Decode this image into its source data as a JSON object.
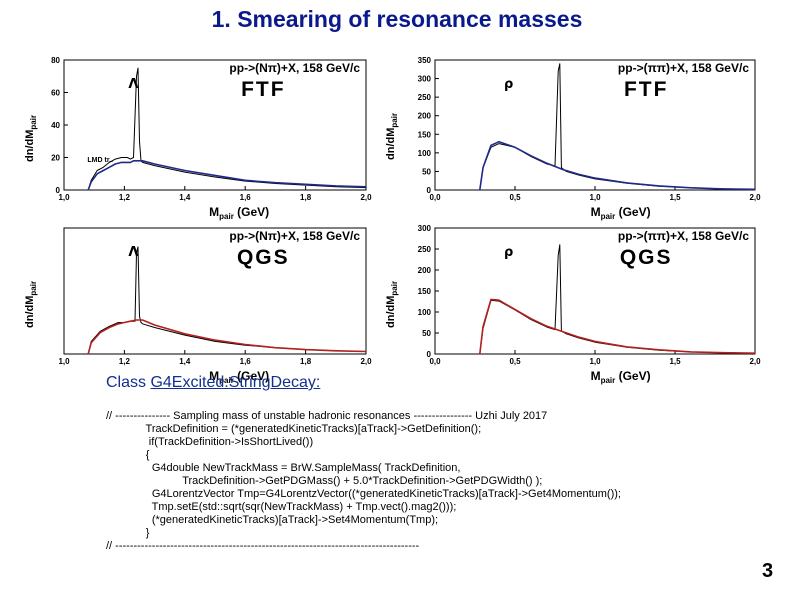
{
  "slide": {
    "title": "1. Smearing of resonance masses",
    "class_prefix": "Class ",
    "class_name": "G4Excited.StringDecay:",
    "code_lines": [
      "// --------------- Sampling mass of unstable hadronic resonances ---------------- Uzhi July 2017",
      "             TrackDefinition = (*generatedKineticTracks)[aTrack]->GetDefinition();",
      "",
      "              if(TrackDefinition->IsShortLived())",
      "             {",
      "               G4double NewTrackMass = BrW.SampleMass( TrackDefinition,",
      "                         TrackDefinition->GetPDGMass() + 5.0*TrackDefinition->GetPDGWidth() );",
      "               G4LorentzVector Tmp=G4LorentzVector((*generatedKineticTracks)[aTrack]->Get4Momentum());",
      "               Tmp.setE(std::sqrt(sqr(NewTrackMass) + Tmp.vect().mag2()));",
      "",
      "               (*generatedKineticTracks)[aTrack]->Set4Momentum(Tmp);",
      "             }",
      "// -----------------------------------------------------------------------------------"
    ],
    "page_number": "3"
  },
  "chart_data": [
    {
      "type": "line",
      "title": "pp->(Nπ)+X, 158 GeV/c",
      "model": "FTF",
      "resonance_label": "Λ",
      "extra_label": "LMD tr..",
      "ylabel": "dn/dM",
      "ylabel_sub": "pair",
      "xlabel": "M",
      "xlabel_sub": "pair",
      "xlabel_unit": "(GeV)",
      "xlim": [
        1.0,
        2.0
      ],
      "ylim": [
        0,
        80
      ],
      "xticks": [
        "1,0",
        "1,2",
        "1,4",
        "1,6",
        "1,8",
        "2,0"
      ],
      "yticks": [
        "0",
        "20",
        "40",
        "60",
        "80"
      ],
      "colors": {
        "black": "#000000",
        "blue": "#1f2a8a"
      },
      "series": [
        {
          "color": "black",
          "x": [
            1.08,
            1.09,
            1.11,
            1.13,
            1.15,
            1.17,
            1.19,
            1.21,
            1.22,
            1.23,
            1.24,
            1.245,
            1.25,
            1.255,
            1.26,
            1.3,
            1.4,
            1.5,
            1.6,
            1.7,
            1.8,
            1.9,
            2.0
          ],
          "y": [
            0,
            6,
            12,
            14,
            17,
            19,
            20,
            20,
            19,
            20,
            70,
            75,
            30,
            18,
            17,
            15,
            11,
            8,
            5.5,
            4,
            3,
            2,
            1.5
          ]
        },
        {
          "color": "blue",
          "x": [
            1.08,
            1.09,
            1.11,
            1.13,
            1.15,
            1.17,
            1.19,
            1.21,
            1.22,
            1.23,
            1.24,
            1.26,
            1.3,
            1.4,
            1.5,
            1.6,
            1.7,
            1.8,
            1.9,
            2.0
          ],
          "y": [
            0,
            5,
            10,
            12,
            14,
            16,
            17,
            17,
            17,
            18,
            18,
            18,
            16,
            12,
            9,
            6,
            4.5,
            3.5,
            2.5,
            2
          ]
        }
      ]
    },
    {
      "type": "line",
      "title": "pp->(ππ)+X, 158 GeV/c",
      "model": "FTF",
      "resonance_label": "ρ",
      "ylabel": "dn/dM",
      "ylabel_sub": "pair",
      "xlabel": "M",
      "xlabel_sub": "pair",
      "xlabel_unit": "(GeV)",
      "xlim": [
        0.0,
        2.0
      ],
      "ylim": [
        0,
        350
      ],
      "xticks": [
        "0,0",
        "0,5",
        "1,0",
        "1,5",
        "2,0"
      ],
      "yticks": [
        "0",
        "50",
        "100",
        "150",
        "200",
        "250",
        "300",
        "350"
      ],
      "colors": {
        "black": "#000000",
        "blue": "#1f2a8a"
      },
      "series": [
        {
          "color": "black",
          "x": [
            0.28,
            0.3,
            0.35,
            0.4,
            0.5,
            0.6,
            0.7,
            0.75,
            0.77,
            0.78,
            0.79,
            0.82,
            0.9,
            1.0,
            1.2,
            1.4,
            1.6,
            1.8,
            2.0
          ],
          "y": [
            0,
            60,
            115,
            125,
            115,
            90,
            70,
            65,
            320,
            340,
            60,
            50,
            40,
            30,
            18,
            10,
            6,
            3,
            2
          ]
        },
        {
          "color": "blue",
          "x": [
            0.28,
            0.3,
            0.35,
            0.4,
            0.5,
            0.6,
            0.7,
            0.8,
            0.9,
            1.0,
            1.2,
            1.4,
            1.6,
            1.8,
            2.0
          ],
          "y": [
            0,
            60,
            120,
            130,
            115,
            92,
            72,
            55,
            42,
            32,
            19,
            11,
            6,
            3,
            2
          ]
        }
      ]
    },
    {
      "type": "line",
      "title": "pp->(Nπ)+X, 158 GeV/c",
      "model": "QGS",
      "resonance_label": "Λ",
      "ylabel": "dn/dM",
      "ylabel_sub": "pair",
      "xlabel": "M",
      "xlabel_sub": "pair",
      "xlabel_unit": "(GeV)",
      "xlim": [
        1.0,
        2.0
      ],
      "ylim": [
        0,
        100
      ],
      "xticks": [
        "1,0",
        "1,2",
        "1,4",
        "1,6",
        "1,8",
        "2,0"
      ],
      "yticks": [],
      "colors": {
        "black": "#000000",
        "red": "#b22020"
      },
      "series": [
        {
          "color": "black",
          "x": [
            1.08,
            1.09,
            1.12,
            1.15,
            1.18,
            1.2,
            1.22,
            1.235,
            1.24,
            1.245,
            1.25,
            1.255,
            1.26,
            1.3,
            1.4,
            1.5,
            1.6,
            1.7,
            1.8,
            1.9,
            2.0
          ],
          "y": [
            0,
            10,
            18,
            22,
            25,
            25,
            26,
            26,
            80,
            85,
            30,
            25,
            24,
            21,
            15,
            10,
            7,
            5,
            3.5,
            2.5,
            2
          ]
        },
        {
          "color": "red",
          "x": [
            1.08,
            1.09,
            1.12,
            1.15,
            1.18,
            1.2,
            1.22,
            1.24,
            1.26,
            1.3,
            1.4,
            1.5,
            1.6,
            1.7,
            1.8,
            1.9,
            2.0
          ],
          "y": [
            0,
            9,
            17,
            21,
            24,
            25,
            26,
            27,
            27,
            23,
            16,
            11,
            7.5,
            5,
            3.5,
            2.5,
            2
          ]
        }
      ]
    },
    {
      "type": "line",
      "title": "pp->(ππ)+X, 158 GeV/c",
      "model": "QGS",
      "resonance_label": "ρ",
      "ylabel": "dn/dM",
      "ylabel_sub": "pair",
      "xlabel": "M",
      "xlabel_sub": "pair",
      "xlabel_unit": "(GeV)",
      "xlim": [
        0.0,
        2.0
      ],
      "ylim": [
        0,
        300
      ],
      "xticks": [
        "0,0",
        "0,5",
        "1,0",
        "1,5",
        "2,0"
      ],
      "yticks": [
        "0",
        "50",
        "100",
        "150",
        "200",
        "250",
        "300"
      ],
      "colors": {
        "black": "#000000",
        "red": "#b22020"
      },
      "series": [
        {
          "color": "black",
          "x": [
            0.28,
            0.3,
            0.35,
            0.4,
            0.5,
            0.6,
            0.7,
            0.75,
            0.77,
            0.78,
            0.79,
            0.82,
            0.9,
            1.0,
            1.2,
            1.4,
            1.6,
            1.8,
            2.0
          ],
          "y": [
            0,
            60,
            128,
            126,
            105,
            82,
            64,
            58,
            235,
            260,
            55,
            48,
            38,
            28,
            16,
            9,
            5,
            3,
            2
          ]
        },
        {
          "color": "red",
          "x": [
            0.28,
            0.3,
            0.35,
            0.4,
            0.5,
            0.6,
            0.7,
            0.8,
            0.9,
            1.0,
            1.2,
            1.4,
            1.6,
            1.8,
            2.0
          ],
          "y": [
            0,
            65,
            130,
            128,
            106,
            84,
            66,
            53,
            40,
            30,
            17,
            10,
            5,
            3,
            2
          ]
        }
      ]
    }
  ]
}
